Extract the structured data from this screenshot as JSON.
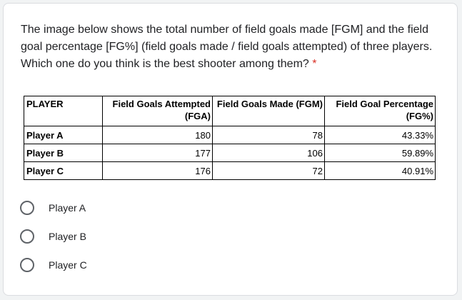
{
  "question": {
    "text": "The image below shows the total number of field goals made [FGM] and the field goal percentage [FG%] (field goals made / field goals attempted) of three players. Which one do you think is the best shooter among them?",
    "required_mark": "*"
  },
  "table": {
    "headers": [
      "PLAYER",
      "Field Goals Attempted (FGA)",
      "Field Goals Made (FGM)",
      "Field Goal Percentage (FG%)"
    ],
    "rows": [
      [
        "Player A",
        "180",
        "78",
        "43.33%"
      ],
      [
        "Player B",
        "177",
        "106",
        "59.89%"
      ],
      [
        "Player C",
        "176",
        "72",
        "40.91%"
      ]
    ]
  },
  "options": [
    "Player A",
    "Player B",
    "Player C"
  ]
}
